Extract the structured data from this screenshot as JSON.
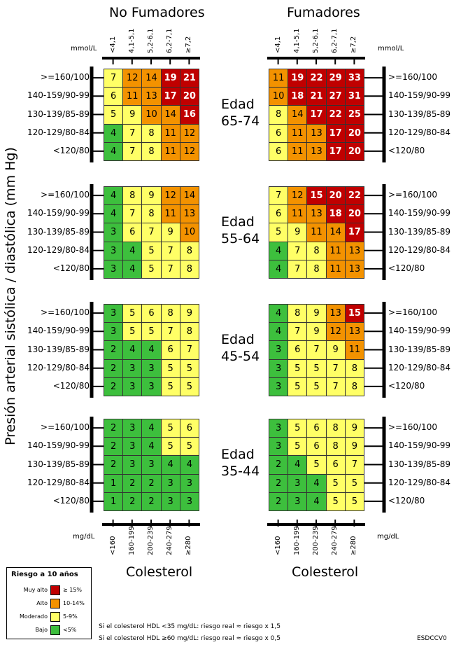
{
  "chart_data": {
    "type": "heatmap",
    "headers": [
      "No Fumadores",
      "Fumadores"
    ],
    "unit_mmol": "mmol/L",
    "unit_mgdl": "mg/dL",
    "cholesterol_mmol": [
      "<4,1",
      "4,1-5,1",
      "5,2-6,1",
      "6,2-7,1",
      "≥7,2"
    ],
    "cholesterol_mgdl": [
      "<160",
      "160-199",
      "200-239",
      "240-279",
      "≥280"
    ],
    "bp_rows": [
      ">=160/100",
      "140-159/90-99",
      "130-139/85-89",
      "120-129/80-84",
      "<120/80"
    ],
    "ylabel": "Presión arterial sistólica / diastólica (mm Hg)",
    "xlabel": "Colesterol",
    "ages": [
      {
        "word": "Edad",
        "range": "65-74",
        "non_smokers": [
          [
            7,
            12,
            14,
            19,
            21
          ],
          [
            6,
            11,
            13,
            17,
            20
          ],
          [
            5,
            9,
            10,
            14,
            16
          ],
          [
            4,
            7,
            8,
            11,
            12
          ],
          [
            4,
            7,
            8,
            11,
            12
          ]
        ],
        "smokers": [
          [
            11,
            19,
            22,
            29,
            33
          ],
          [
            10,
            18,
            21,
            27,
            31
          ],
          [
            8,
            14,
            17,
            22,
            25
          ],
          [
            6,
            11,
            13,
            17,
            20
          ],
          [
            6,
            11,
            13,
            17,
            20
          ]
        ]
      },
      {
        "word": "Edad",
        "range": "55-64",
        "non_smokers": [
          [
            4,
            8,
            9,
            12,
            14
          ],
          [
            4,
            7,
            8,
            11,
            13
          ],
          [
            3,
            6,
            7,
            9,
            10
          ],
          [
            3,
            4,
            5,
            7,
            8
          ],
          [
            3,
            4,
            5,
            7,
            8
          ]
        ],
        "smokers": [
          [
            7,
            12,
            15,
            20,
            22
          ],
          [
            6,
            11,
            13,
            18,
            20
          ],
          [
            5,
            9,
            11,
            14,
            17
          ],
          [
            4,
            7,
            8,
            11,
            13
          ],
          [
            4,
            7,
            8,
            11,
            13
          ]
        ]
      },
      {
        "word": "Edad",
        "range": "45-54",
        "non_smokers": [
          [
            3,
            5,
            6,
            8,
            9
          ],
          [
            3,
            5,
            5,
            7,
            8
          ],
          [
            2,
            4,
            4,
            6,
            7
          ],
          [
            2,
            3,
            3,
            5,
            5
          ],
          [
            2,
            3,
            3,
            5,
            5
          ]
        ],
        "smokers": [
          [
            4,
            8,
            9,
            13,
            15
          ],
          [
            4,
            7,
            9,
            12,
            13
          ],
          [
            3,
            6,
            7,
            9,
            11
          ],
          [
            3,
            5,
            5,
            7,
            8
          ],
          [
            3,
            5,
            5,
            7,
            8
          ]
        ]
      },
      {
        "word": "Edad",
        "range": "35-44",
        "non_smokers": [
          [
            2,
            3,
            4,
            5,
            6
          ],
          [
            2,
            3,
            4,
            5,
            5
          ],
          [
            2,
            3,
            3,
            4,
            4
          ],
          [
            1,
            2,
            2,
            3,
            3
          ],
          [
            1,
            2,
            2,
            3,
            3
          ]
        ],
        "smokers": [
          [
            3,
            5,
            6,
            8,
            9
          ],
          [
            3,
            5,
            6,
            8,
            9
          ],
          [
            2,
            4,
            5,
            6,
            7
          ],
          [
            2,
            3,
            4,
            5,
            5
          ],
          [
            2,
            3,
            4,
            5,
            5
          ]
        ]
      }
    ],
    "risk_colors": {
      "very_high": "#c00000",
      "high": "#f39200",
      "moderate": "#ffff66",
      "low": "#3dbf3d"
    },
    "legend_position": "bottom-left"
  },
  "legend": {
    "title": "Riesgo a 10 años",
    "items": [
      {
        "label": "Muy alto",
        "range": "≥ 15%",
        "color": "#c00000"
      },
      {
        "label": "Alto",
        "range": "10-14%",
        "color": "#f39200"
      },
      {
        "label": "Moderado",
        "range": "5-9%",
        "color": "#ffff66"
      },
      {
        "label": "Bajo",
        "range": "<5%",
        "color": "#3dbf3d"
      }
    ]
  },
  "notes": [
    "Si el colesterol HDL <35 mg/dL: riesgo real ≈ riesgo x 1,5",
    "Si el colesterol HDL ≥60 mg/dL: riesgo real ≈ riesgo x 0,5"
  ],
  "code": "ESDCCV0"
}
